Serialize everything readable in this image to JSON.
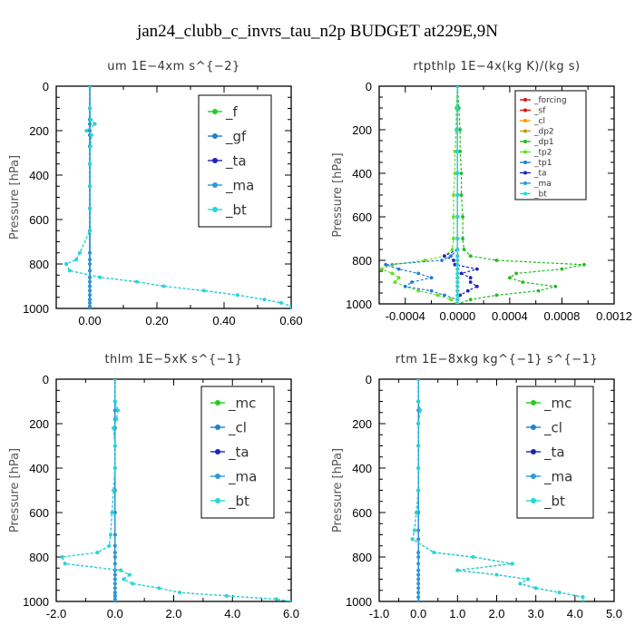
{
  "figure_title": "jan24_clubb_c_invrs_tau_n2p  BUDGET at229E,9N",
  "chart_data": [
    {
      "type": "line",
      "title": "um  1E−4xm s^{−2}",
      "ylabel": "Pressure [hPa]",
      "xlim": [
        -0.1,
        0.6
      ],
      "ylim": [
        1000,
        0
      ],
      "xticks": [
        "0.00",
        "0.20",
        "0.40",
        "0.60"
      ],
      "xtick_values": [
        0.0,
        0.2,
        0.4,
        0.6
      ],
      "yticks": [
        "0",
        "200",
        "400",
        "600",
        "800",
        "1000"
      ],
      "legend_position": "top-right",
      "pressure": [
        0,
        100,
        150,
        170,
        200,
        220,
        270,
        350,
        450,
        550,
        650,
        750,
        780,
        800,
        830,
        860,
        880,
        900,
        920,
        940,
        960,
        975,
        990,
        1000
      ],
      "series": [
        {
          "name": "_f",
          "color": "#22cc22",
          "values": [
            0,
            0,
            0,
            0,
            0,
            0,
            0,
            0,
            0,
            0,
            0,
            0,
            0,
            0,
            0,
            0,
            0,
            0,
            0,
            0,
            0,
            0,
            0,
            0
          ]
        },
        {
          "name": "_gf",
          "color": "#1e7fd0",
          "values": [
            0,
            0,
            0.003,
            0.015,
            -0.01,
            0.005,
            0.002,
            0,
            0,
            0,
            0,
            -0.03,
            -0.04,
            -0.07,
            -0.06,
            0.03,
            0.14,
            0.22,
            0.34,
            0.44,
            0.52,
            0.57,
            0.6,
            0.6
          ]
        },
        {
          "name": "_ta",
          "color": "#2222bb",
          "values": [
            0,
            0,
            0,
            0,
            0,
            0,
            0,
            0,
            0,
            0,
            0,
            0,
            0,
            0,
            0,
            0,
            0,
            0,
            0,
            0,
            0,
            0,
            0,
            0
          ]
        },
        {
          "name": "_ma",
          "color": "#2a9ad8",
          "values": [
            0,
            0,
            0,
            0,
            0,
            0,
            0,
            0,
            0,
            0,
            0,
            0,
            0,
            0,
            0,
            0,
            0,
            0,
            0,
            0,
            0,
            0,
            0,
            0
          ]
        },
        {
          "name": "_bt",
          "color": "#22d8d8",
          "values": [
            0,
            0,
            0.003,
            0.015,
            -0.01,
            0.005,
            0.002,
            0,
            0,
            0,
            0,
            -0.03,
            -0.04,
            -0.07,
            -0.06,
            0.03,
            0.14,
            0.22,
            0.34,
            0.44,
            0.52,
            0.57,
            0.6,
            0.6
          ]
        }
      ]
    },
    {
      "type": "line",
      "title": "rtpthlp  1E−4x(kg K)/(kg s)",
      "ylabel": "Pressure [hPa]",
      "xlim": [
        -0.0006,
        0.0012
      ],
      "ylim": [
        1000,
        0
      ],
      "xticks": [
        "-0.0004",
        "0.0000",
        "0.0004",
        "0.0008",
        "0.0012"
      ],
      "xtick_values": [
        -0.0004,
        0.0,
        0.0004,
        0.0008,
        0.0012
      ],
      "yticks": [
        "0",
        "200",
        "400",
        "600",
        "800",
        "1000"
      ],
      "legend_position": "top-right",
      "pressure": [
        0,
        100,
        200,
        300,
        400,
        500,
        600,
        700,
        750,
        780,
        800,
        820,
        840,
        860,
        880,
        900,
        920,
        940,
        960,
        980,
        1000
      ],
      "series": [
        {
          "name": "_forcing",
          "color": "#dd1111",
          "values": [
            0,
            0,
            0,
            0,
            0,
            0,
            0,
            0,
            0,
            0,
            0,
            0,
            0,
            0,
            0,
            0,
            0,
            0,
            0,
            0,
            0
          ]
        },
        {
          "name": "_sf",
          "color": "#dd1111",
          "values": [
            0,
            0,
            0,
            0,
            0,
            0,
            0,
            0,
            0,
            0,
            0,
            0,
            0,
            0,
            0,
            0,
            0,
            0,
            0,
            0,
            0
          ]
        },
        {
          "name": "_cl",
          "color": "#ff9900",
          "values": [
            0,
            0,
            0,
            0,
            0,
            0,
            0,
            0,
            0,
            0,
            0,
            0,
            0,
            0,
            0,
            0,
            0,
            0,
            0,
            0,
            0
          ]
        },
        {
          "name": "_dp2",
          "color": "#cc9900",
          "values": [
            0,
            0,
            0,
            0,
            0,
            0,
            0,
            0,
            0,
            0,
            0,
            0,
            0,
            0,
            0,
            0,
            0,
            0,
            0,
            0,
            0
          ]
        },
        {
          "name": "_dp1",
          "color": "#22bb22",
          "values": [
            0,
            1e-05,
            2e-05,
            2e-05,
            3e-05,
            3e-05,
            4e-05,
            4e-05,
            5e-05,
            0.0001,
            0.0003,
            0.00097,
            0.0008,
            0.00045,
            0.0004,
            0.0005,
            0.00075,
            0.00062,
            0.0003,
            0.0001,
            0
          ]
        },
        {
          "name": "_tp2",
          "color": "#66dd22",
          "values": [
            0,
            -1e-05,
            -1e-05,
            -2e-05,
            -2e-05,
            -3e-05,
            -3e-05,
            -3e-05,
            -4e-05,
            -0.0001,
            -0.00025,
            -0.0005,
            -0.00058,
            -0.0005,
            -0.00045,
            -0.00048,
            -0.0004,
            -0.0003,
            -0.00015,
            -5e-05,
            0
          ]
        },
        {
          "name": "_tp1",
          "color": "#1e7fd0",
          "values": [
            0,
            0,
            0,
            0,
            0,
            0,
            0,
            0,
            0,
            -5e-05,
            -0.00012,
            -0.00055,
            -0.00045,
            -0.0003,
            -0.0002,
            -0.00035,
            -0.0004,
            -0.0002,
            -0.0001,
            0,
            0
          ]
        },
        {
          "name": "_ta",
          "color": "#2222bb",
          "values": [
            0,
            0,
            0,
            0,
            0,
            0,
            0,
            0,
            0,
            -0.0001,
            -3e-05,
            -2e-05,
            0.00015,
            3e-05,
            0.0001,
            0.0001,
            0.00015,
            8e-05,
            2e-05,
            0,
            0
          ]
        },
        {
          "name": "_ma",
          "color": "#2a9ad8",
          "values": [
            0,
            0,
            0,
            0,
            0,
            0,
            0,
            0,
            0,
            0,
            0,
            0,
            0,
            0,
            0,
            0,
            0,
            0,
            0,
            0,
            0
          ]
        },
        {
          "name": "_bt",
          "color": "#22d8d8",
          "values": [
            0,
            0,
            0,
            0,
            0,
            0,
            0,
            0,
            0,
            0,
            0,
            0,
            0,
            0,
            0,
            0,
            0,
            0,
            0,
            0,
            0
          ]
        }
      ]
    },
    {
      "type": "line",
      "title": "thlm  1E−5xK s^{−1}",
      "ylabel": "Pressure [hPa]",
      "xlim": [
        -2.0,
        6.0
      ],
      "ylim": [
        1000,
        0
      ],
      "xticks": [
        "-2.0",
        "0.0",
        "2.0",
        "4.0",
        "6.0"
      ],
      "xtick_values": [
        -2.0,
        0.0,
        2.0,
        4.0,
        6.0
      ],
      "yticks": [
        "0",
        "200",
        "400",
        "600",
        "800",
        "1000"
      ],
      "legend_position": "top-right",
      "pressure": [
        0,
        100,
        140,
        180,
        220,
        300,
        400,
        500,
        600,
        700,
        750,
        780,
        800,
        830,
        860,
        880,
        900,
        920,
        940,
        960,
        975,
        990,
        1000
      ],
      "series": [
        {
          "name": "_mc",
          "color": "#22cc22",
          "values": [
            0,
            0,
            0,
            0,
            0,
            0,
            0,
            0,
            0,
            0,
            0,
            0,
            0,
            0,
            0,
            0,
            0,
            0,
            0,
            0,
            0,
            0,
            0
          ]
        },
        {
          "name": "_cl",
          "color": "#1e7fd0",
          "values": [
            0,
            0,
            0.1,
            0.05,
            -0.05,
            0,
            0,
            -0.05,
            -0.1,
            -0.15,
            -0.2,
            -0.6,
            -1.8,
            -1.7,
            0.2,
            0.5,
            0.3,
            0.6,
            1.5,
            2.2,
            3.8,
            5.5,
            6.0
          ]
        },
        {
          "name": "_ta",
          "color": "#2222bb",
          "values": [
            0,
            0,
            0,
            0,
            0,
            0,
            0,
            0,
            0,
            0,
            0,
            0,
            0,
            0,
            0,
            0,
            0,
            0,
            0,
            0,
            0,
            0,
            0
          ]
        },
        {
          "name": "_ma",
          "color": "#2a9ad8",
          "values": [
            0,
            0,
            0,
            0,
            0,
            0,
            0,
            0,
            0,
            0,
            0,
            0,
            0,
            0,
            0,
            0,
            0,
            0,
            0,
            0,
            0,
            0,
            0
          ]
        },
        {
          "name": "_bt",
          "color": "#22d8d8",
          "values": [
            0,
            0,
            0.1,
            0.05,
            -0.05,
            0,
            0,
            -0.05,
            -0.1,
            -0.15,
            -0.2,
            -0.6,
            -1.8,
            -1.7,
            0.2,
            0.5,
            0.3,
            0.6,
            1.5,
            2.2,
            3.8,
            5.5,
            6.0
          ]
        }
      ]
    },
    {
      "type": "line",
      "title": "rtm  1E−8xkg kg^{−1} s^{−1}",
      "ylabel": "Pressure [hPa]",
      "xlim": [
        -1.0,
        5.0
      ],
      "ylim": [
        1000,
        0
      ],
      "xticks": [
        "-1.0",
        "0.0",
        "1.0",
        "2.0",
        "3.0",
        "4.0",
        "5.0"
      ],
      "xtick_values": [
        -1.0,
        0.0,
        1.0,
        2.0,
        3.0,
        4.0,
        5.0
      ],
      "yticks": [
        "0",
        "200",
        "400",
        "600",
        "800",
        "1000"
      ],
      "legend_position": "top-right",
      "pressure": [
        0,
        100,
        140,
        200,
        300,
        400,
        500,
        600,
        680,
        720,
        780,
        800,
        830,
        860,
        880,
        900,
        920,
        940,
        960,
        980,
        1000
      ],
      "series": [
        {
          "name": "_mc",
          "color": "#22cc22",
          "values": [
            0,
            0,
            0.05,
            0,
            0,
            0,
            0,
            -0.05,
            -0.1,
            -0.15,
            0.4,
            1.4,
            2.4,
            1.0,
            2.0,
            2.8,
            2.6,
            3.0,
            3.6,
            4.2,
            4.2
          ]
        },
        {
          "name": "_cl",
          "color": "#1e7fd0",
          "values": [
            0,
            0,
            0.05,
            0,
            0,
            0,
            0,
            -0.05,
            -0.1,
            -0.15,
            0.4,
            1.4,
            2.4,
            1.0,
            2.0,
            2.8,
            2.6,
            3.0,
            3.6,
            4.2,
            4.2
          ]
        },
        {
          "name": "_ta",
          "color": "#2222bb",
          "values": [
            0,
            0,
            0,
            0,
            0,
            0,
            0,
            0,
            0,
            0,
            0,
            0,
            0,
            0,
            0,
            0,
            0,
            0,
            0,
            0,
            0
          ]
        },
        {
          "name": "_ma",
          "color": "#2a9ad8",
          "values": [
            0,
            0,
            0,
            0,
            0,
            0,
            0,
            0,
            0,
            0,
            0,
            0,
            0,
            0,
            0,
            0,
            0,
            0,
            0,
            0,
            0
          ]
        },
        {
          "name": "_bt",
          "color": "#22d8d8",
          "values": [
            0,
            0,
            0.05,
            0,
            0,
            0,
            0,
            -0.05,
            -0.1,
            -0.15,
            0.4,
            1.4,
            2.4,
            1.0,
            2.0,
            2.8,
            2.6,
            3.0,
            3.6,
            4.2,
            4.2
          ]
        }
      ]
    }
  ]
}
